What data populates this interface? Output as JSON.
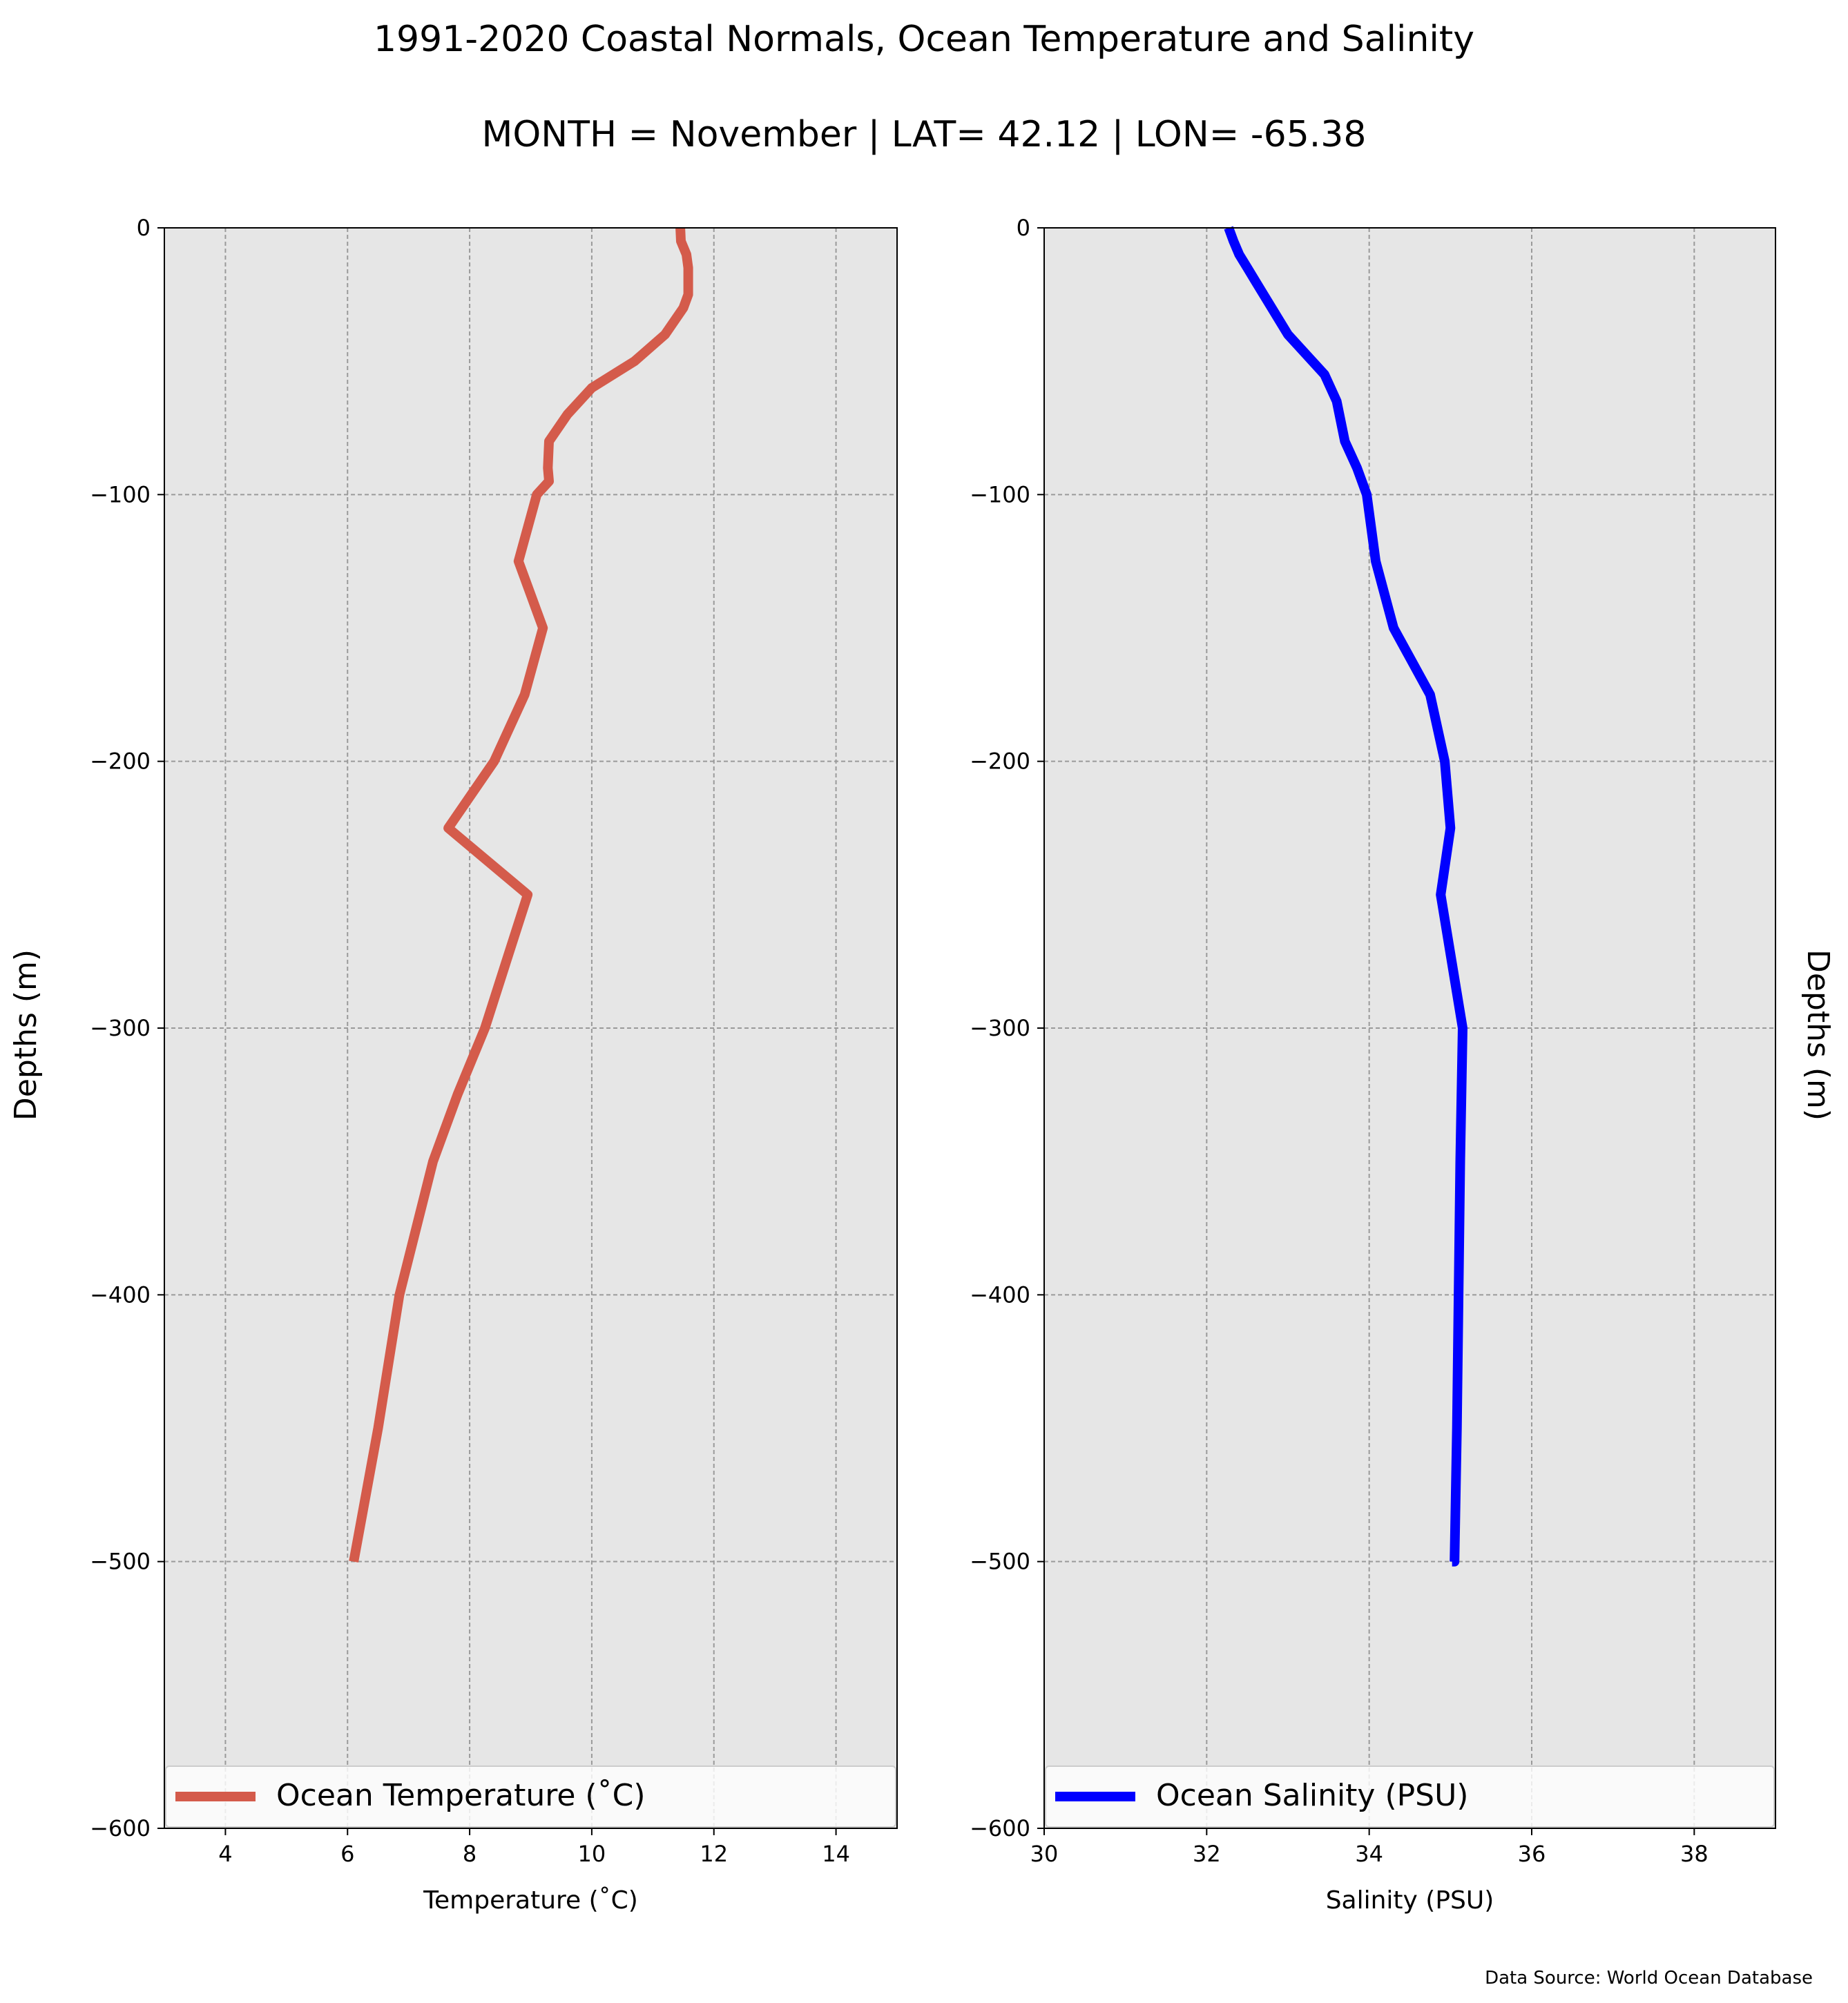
{
  "figure": {
    "title": "1991-2020 Coastal Normals, Ocean Temperature and Salinity",
    "subtitle": "MONTH = November | LAT= 42.12 | LON= -65.38",
    "source_note": "Data Source: World Ocean Database"
  },
  "chart_data": [
    {
      "type": "line",
      "xlabel": "Temperature ($^\\circ$C)",
      "xlabel_display": "Temperature (˚C)",
      "ylabel": "Depths (m)",
      "ylabel_position": "left",
      "xlim": [
        3,
        15
      ],
      "ylim": [
        -600,
        0
      ],
      "xticks": [
        "4",
        "6",
        "8",
        "10",
        "12",
        "14"
      ],
      "yticks": [
        "0",
        "−100",
        "−200",
        "−300",
        "−400",
        "−500",
        "−600"
      ],
      "grid": true,
      "legend_position": "bottom",
      "series": [
        {
          "name": "Ocean Temperature (˚C)",
          "color": "#d45b4b",
          "x": [
            11.45,
            11.46,
            11.55,
            11.58,
            11.58,
            11.5,
            11.2,
            10.7,
            10.0,
            9.6,
            9.3,
            9.28,
            9.3,
            9.1,
            8.8,
            9.2,
            8.9,
            8.4,
            7.65,
            8.95,
            8.6,
            8.25,
            7.8,
            7.4,
            6.85,
            6.5,
            6.1
          ],
          "y": [
            0,
            -5,
            -10,
            -15,
            -25,
            -30,
            -40,
            -50,
            -60,
            -70,
            -80,
            -90,
            -95,
            -100,
            -125,
            -150,
            -175,
            -200,
            -225,
            -250,
            -275,
            -300,
            -325,
            -350,
            -400,
            -450,
            -500
          ]
        }
      ]
    },
    {
      "type": "line",
      "xlabel": "Salinity (PSU)",
      "ylabel": "Depths (m)",
      "ylabel_position": "right",
      "xlim": [
        30,
        39
      ],
      "ylim": [
        -600,
        0
      ],
      "xticks": [
        "30",
        "32",
        "34",
        "36",
        "38"
      ],
      "yticks": [
        "0",
        "−100",
        "−200",
        "−300",
        "−400",
        "−500",
        "−600"
      ],
      "grid": true,
      "legend_position": "bottom",
      "series": [
        {
          "name": "Ocean Salinity (PSU)",
          "color": "#0000ff",
          "x": [
            32.27,
            32.33,
            32.4,
            32.5,
            32.6,
            32.7,
            33.0,
            33.45,
            33.6,
            33.7,
            33.85,
            33.97,
            34.08,
            34.3,
            34.75,
            34.93,
            35.0,
            34.88,
            35.15,
            35.12,
            35.1,
            35.08,
            35.05,
            35.02
          ],
          "y": [
            0,
            -5,
            -10,
            -15,
            -20,
            -25,
            -40,
            -55,
            -65,
            -80,
            -90,
            -100,
            -125,
            -150,
            -175,
            -200,
            -225,
            -250,
            -300,
            -350,
            -400,
            -450,
            -500,
            -500
          ]
        }
      ]
    }
  ]
}
